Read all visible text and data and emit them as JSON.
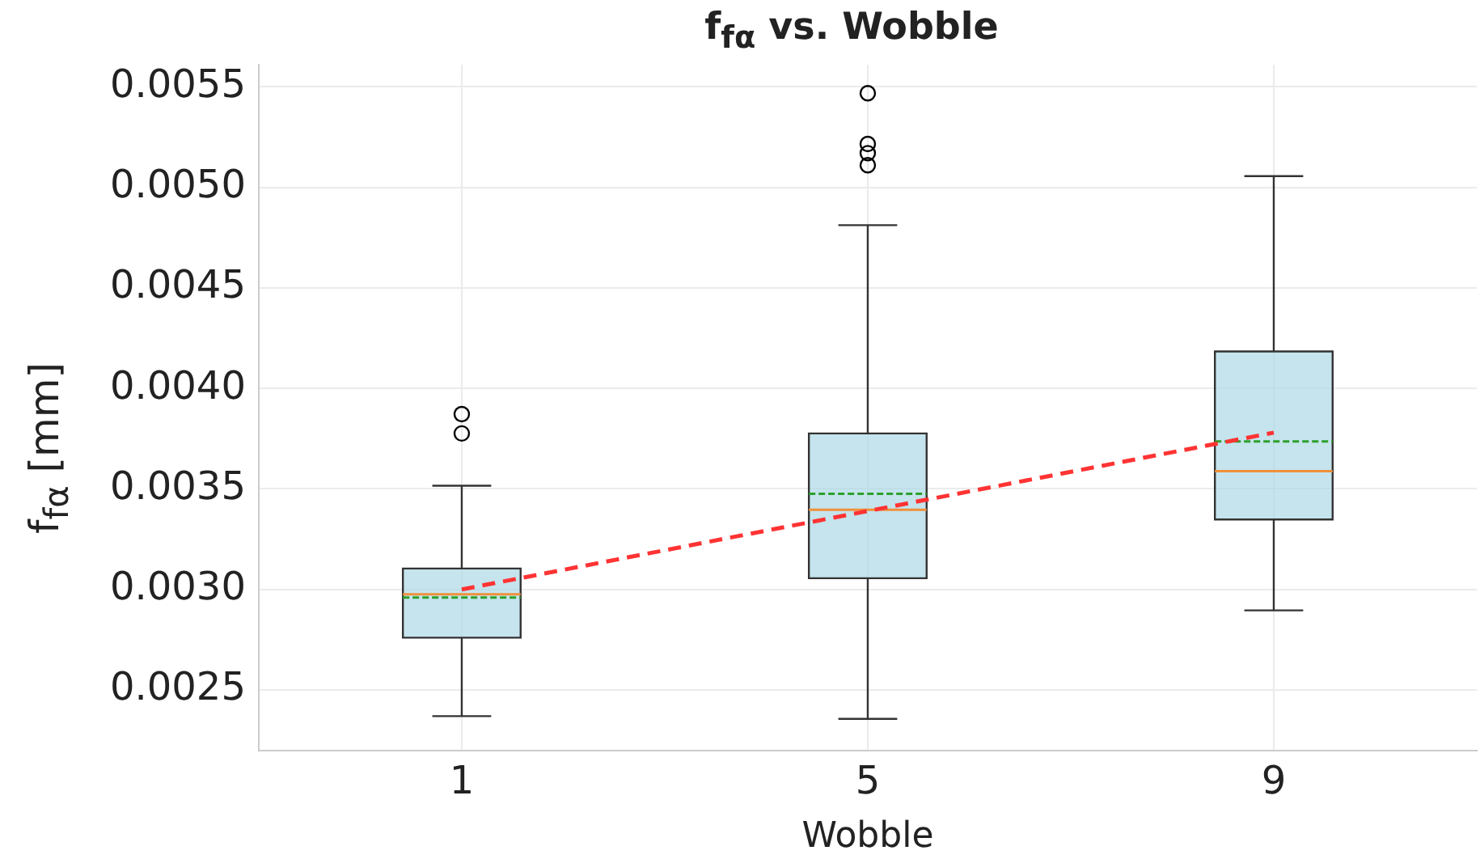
{
  "chart_data": {
    "type": "box",
    "title": "f$_{fα}$ vs. Wobble",
    "xlabel": "Wobble",
    "ylabel": "f$_{fα}$ [mm]",
    "categories": [
      "1",
      "5",
      "9"
    ],
    "ylim": [
      0.0022,
      0.00561
    ],
    "yticks": [
      0.0025,
      {
        "value": 0.003,
        "label": "0.0030"
      },
      0.0035,
      {
        "value": 0.004,
        "label": "0.0040"
      },
      0.0045,
      {
        "value": 0.005,
        "label": "0.0050"
      },
      0.0055
    ],
    "grid": true,
    "legend": false,
    "series": [
      {
        "color": "#add8e6",
        "boxes": [
          {
            "low": 0.00237,
            "q1": 0.00276,
            "median": 0.002976,
            "q3": 0.003104,
            "high": 0.003516,
            "mean": 0.00296,
            "outliers": [
              0.003872,
              0.003776
            ]
          },
          {
            "low": 0.002356,
            "q1": 0.003056,
            "median": 0.003396,
            "q3": 0.003776,
            "high": 0.004812,
            "mean": 0.003476,
            "outliers": [
              0.005468,
              0.005216,
              0.00517,
              0.00511
            ]
          },
          {
            "low": 0.002896,
            "q1": 0.003348,
            "median": 0.003588,
            "q3": 0.004184,
            "high": 0.005056,
            "mean": 0.003736
          }
        ]
      },
      {
        "type": "line",
        "color": "#ff3333",
        "x": [
          "1",
          "9"
        ],
        "values": [
          0.003,
          0.00378
        ],
        "line_style": "dashed",
        "marker": "none"
      }
    ]
  }
}
